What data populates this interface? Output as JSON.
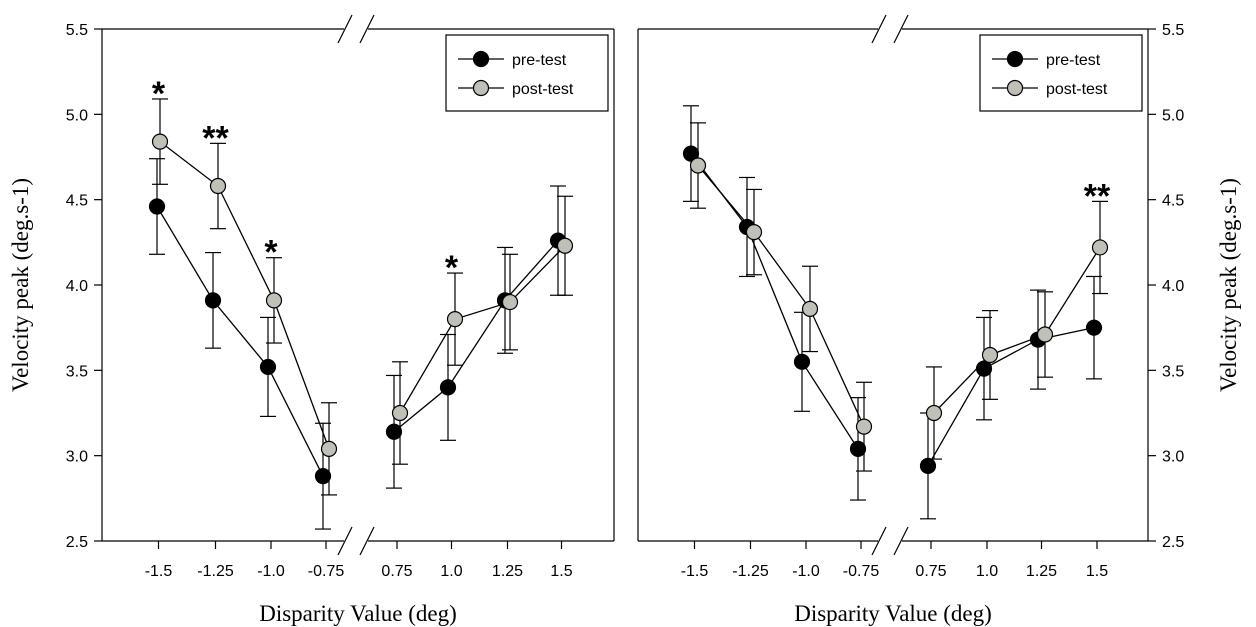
{
  "chart_data": [
    {
      "type": "line",
      "panel": "left",
      "xlabel": "Disparity Value (deg)",
      "ylabel": "Velocity peak (deg.s-1)",
      "ylim": [
        2.5,
        5.5
      ],
      "yticks": [
        "2.5",
        "3.0",
        "3.5",
        "4.0",
        "4.5",
        "5.0",
        "5.5"
      ],
      "categories": [
        "-1.5",
        "-1.25",
        "-1.0",
        "-0.75",
        "0.75",
        "1.0",
        "1.25",
        "1.5"
      ],
      "axis_break": "between -0.75 and 0.75",
      "legend": {
        "position": "top-right",
        "entries": [
          "pre-test",
          "post-test"
        ]
      },
      "series": [
        {
          "name": "pre-test",
          "color": "#000000",
          "values": [
            4.46,
            3.91,
            3.52,
            2.88,
            3.14,
            3.4,
            3.91,
            4.26
          ],
          "errors": [
            0.28,
            0.28,
            0.29,
            0.31,
            0.33,
            0.31,
            0.31,
            0.32
          ]
        },
        {
          "name": "post-test",
          "color": "#c0c0b8",
          "values": [
            4.84,
            4.58,
            3.91,
            3.04,
            3.25,
            3.8,
            3.9,
            4.23
          ],
          "errors": [
            0.25,
            0.25,
            0.25,
            0.27,
            0.3,
            0.27,
            0.28,
            0.29
          ]
        }
      ],
      "annotations": [
        {
          "text": "*",
          "category": "-1.5"
        },
        {
          "text": "**",
          "category": "-1.25"
        },
        {
          "text": "*",
          "category": "-1.0"
        },
        {
          "text": "*",
          "category": "1.0"
        }
      ]
    },
    {
      "type": "line",
      "panel": "right",
      "xlabel": "Disparity Value (deg)",
      "ylabel": "Velocity peak (deg.s-1)",
      "ylim": [
        2.5,
        5.5
      ],
      "yticks": [
        "2.5",
        "3.0",
        "3.5",
        "4.0",
        "4.5",
        "5.0",
        "5.5"
      ],
      "categories": [
        "-1.5",
        "-1.25",
        "-1.0",
        "-0.75",
        "0.75",
        "1.0",
        "1.25",
        "1.5"
      ],
      "axis_break": "between -0.75 and 0.75",
      "legend": {
        "position": "top-right",
        "entries": [
          "pre-test",
          "post-test"
        ]
      },
      "series": [
        {
          "name": "pre-test",
          "color": "#000000",
          "values": [
            4.77,
            4.34,
            3.55,
            3.04,
            2.94,
            3.51,
            3.68,
            3.75
          ],
          "errors": [
            0.28,
            0.29,
            0.29,
            0.3,
            0.31,
            0.3,
            0.29,
            0.3
          ]
        },
        {
          "name": "post-test",
          "color": "#c0c0b8",
          "values": [
            4.7,
            4.31,
            3.86,
            3.17,
            3.25,
            3.59,
            3.71,
            4.22
          ],
          "errors": [
            0.25,
            0.25,
            0.25,
            0.26,
            0.27,
            0.26,
            0.25,
            0.27
          ]
        }
      ],
      "annotations": [
        {
          "text": "**",
          "category": "1.5"
        }
      ]
    }
  ]
}
